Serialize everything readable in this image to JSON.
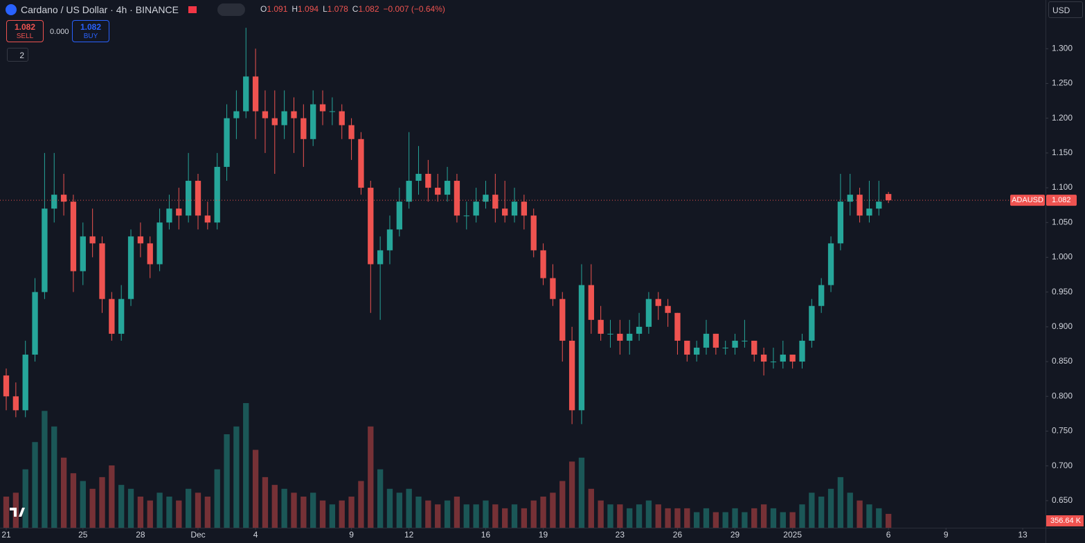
{
  "header": {
    "symbol": "Cardano / US Dollar · 4h · BINANCE",
    "ohlc": [
      {
        "key": "O",
        "value": "1.091"
      },
      {
        "key": "H",
        "value": "1.094"
      },
      {
        "key": "L",
        "value": "1.078"
      },
      {
        "key": "C",
        "value": "1.082"
      }
    ],
    "change": "−0.007 (−0.64%)",
    "sell_price": "1.082",
    "sell": "SELL",
    "spread": "0.000",
    "buy_price": "1.082",
    "buy": "BUY",
    "indicators": "2",
    "currency": "USD"
  },
  "chart_data": {
    "type": "candlestick",
    "up_color": "#26a69a",
    "down_color": "#ef5350",
    "grid": false,
    "xlim": [
      -0.325,
      54.19
    ],
    "xticks": [
      {
        "value": 0,
        "label": "21"
      },
      {
        "value": 4,
        "label": "25"
      },
      {
        "value": 7,
        "label": "28"
      },
      {
        "value": 10,
        "label": "Dec"
      },
      {
        "value": 13,
        "label": "4"
      },
      {
        "value": 18,
        "label": "9"
      },
      {
        "value": 21,
        "label": "12"
      },
      {
        "value": 25,
        "label": "16"
      },
      {
        "value": 28,
        "label": "19"
      },
      {
        "value": 32,
        "label": "23"
      },
      {
        "value": 35,
        "label": "26"
      },
      {
        "value": 38,
        "label": "29"
      },
      {
        "value": 41,
        "label": "2025"
      },
      {
        "value": 46,
        "label": "6"
      },
      {
        "value": 49,
        "label": "9"
      },
      {
        "value": 53,
        "label": "13"
      }
    ],
    "ylim": [
      0.611,
      1.37
    ],
    "yticks": [
      {
        "value": 1.3,
        "label": "1.300"
      },
      {
        "value": 1.25,
        "label": "1.250"
      },
      {
        "value": 1.2,
        "label": "1.200"
      },
      {
        "value": 1.15,
        "label": "1.150"
      },
      {
        "value": 1.1,
        "label": "1.100"
      },
      {
        "value": 1.05,
        "label": "1.050"
      },
      {
        "value": 1.0,
        "label": "1.000"
      },
      {
        "value": 0.95,
        "label": "0.950"
      },
      {
        "value": 0.9,
        "label": "0.900"
      },
      {
        "value": 0.85,
        "label": "0.850"
      },
      {
        "value": 0.8,
        "label": "0.800"
      },
      {
        "value": 0.75,
        "label": "0.750"
      },
      {
        "value": 0.7,
        "label": "0.700"
      },
      {
        "value": 0.65,
        "label": "0.650"
      }
    ],
    "price_line": {
      "name": "ADAUSD",
      "value": 1.082
    },
    "last_volume_label": "356.64 K",
    "x": [
      0,
      0.5,
      1,
      1.5,
      2,
      2.5,
      3,
      3.5,
      4,
      4.5,
      5,
      5.5,
      6,
      6.5,
      7,
      7.5,
      8,
      8.5,
      9,
      9.5,
      10,
      10.5,
      11,
      11.5,
      12,
      12.5,
      13,
      13.5,
      14,
      14.5,
      15,
      15.5,
      16,
      16.5,
      17,
      17.5,
      18,
      18.5,
      19,
      19.5,
      20,
      20.5,
      21,
      21.5,
      22,
      22.5,
      23,
      23.5,
      24,
      24.5,
      25,
      25.5,
      26,
      26.5,
      27,
      27.5,
      28,
      28.5,
      29,
      29.5,
      30,
      30.5,
      31,
      31.5,
      32,
      32.5,
      33,
      33.5,
      34,
      34.5,
      35,
      35.5,
      36,
      36.5,
      37,
      37.5,
      38,
      38.5,
      39,
      39.5,
      40,
      40.5,
      41,
      41.5,
      42,
      42.5,
      43,
      43.5,
      44,
      44.5,
      45,
      45.5,
      46
    ],
    "open": [
      0.83,
      0.8,
      0.78,
      0.86,
      0.95,
      1.07,
      1.09,
      1.08,
      0.98,
      1.03,
      1.02,
      0.94,
      0.89,
      0.94,
      1.03,
      1.02,
      0.99,
      1.05,
      1.07,
      1.06,
      1.11,
      1.06,
      1.05,
      1.13,
      1.2,
      1.21,
      1.26,
      1.21,
      1.2,
      1.19,
      1.21,
      1.2,
      1.17,
      1.22,
      1.21,
      1.21,
      1.19,
      1.17,
      1.1,
      0.99,
      1.01,
      1.04,
      1.08,
      1.11,
      1.12,
      1.1,
      1.09,
      1.11,
      1.06,
      1.06,
      1.08,
      1.09,
      1.07,
      1.06,
      1.08,
      1.06,
      1.01,
      0.97,
      0.94,
      0.88,
      0.78,
      0.96,
      0.91,
      0.89,
      0.89,
      0.88,
      0.89,
      0.9,
      0.94,
      0.93,
      0.92,
      0.88,
      0.86,
      0.87,
      0.89,
      0.87,
      0.87,
      0.88,
      0.88,
      0.86,
      0.85,
      0.85,
      0.86,
      0.85,
      0.88,
      0.93,
      0.96,
      1.02,
      1.08,
      1.09,
      1.06,
      1.07,
      1.091
    ],
    "high": [
      0.84,
      0.82,
      0.88,
      0.97,
      1.15,
      1.15,
      1.12,
      1.09,
      1.05,
      1.07,
      1.03,
      0.95,
      0.96,
      1.04,
      1.05,
      1.03,
      1.07,
      1.09,
      1.1,
      1.15,
      1.12,
      1.08,
      1.15,
      1.22,
      1.24,
      1.33,
      1.3,
      1.24,
      1.24,
      1.24,
      1.23,
      1.22,
      1.24,
      1.24,
      1.23,
      1.22,
      1.2,
      1.18,
      1.11,
      1.03,
      1.06,
      1.1,
      1.18,
      1.16,
      1.14,
      1.12,
      1.13,
      1.12,
      1.08,
      1.1,
      1.11,
      1.12,
      1.11,
      1.1,
      1.09,
      1.07,
      1.02,
      0.99,
      0.95,
      0.9,
      0.99,
      0.99,
      0.93,
      0.91,
      0.91,
      0.91,
      0.92,
      0.95,
      0.95,
      0.94,
      0.92,
      0.88,
      0.88,
      0.91,
      0.89,
      0.88,
      0.89,
      0.91,
      0.88,
      0.87,
      0.87,
      0.88,
      0.86,
      0.89,
      0.94,
      0.97,
      1.03,
      1.12,
      1.12,
      1.1,
      1.11,
      1.11,
      1.094
    ],
    "low": [
      0.78,
      0.77,
      0.77,
      0.85,
      0.94,
      1.05,
      1.06,
      0.95,
      0.96,
      1.0,
      0.92,
      0.88,
      0.88,
      0.93,
      1.0,
      0.97,
      0.98,
      1.04,
      1.04,
      1.05,
      1.04,
      1.04,
      1.04,
      1.11,
      1.17,
      1.2,
      1.17,
      1.15,
      1.12,
      1.17,
      1.15,
      1.13,
      1.16,
      1.19,
      1.19,
      1.17,
      1.14,
      1.09,
      0.92,
      0.91,
      0.99,
      1.03,
      1.07,
      1.09,
      1.08,
      1.08,
      1.08,
      1.05,
      1.04,
      1.05,
      1.07,
      1.05,
      1.05,
      1.05,
      1.04,
      1.0,
      0.96,
      0.93,
      0.85,
      0.76,
      0.76,
      0.89,
      0.88,
      0.87,
      0.86,
      0.86,
      0.88,
      0.89,
      0.91,
      0.9,
      0.86,
      0.85,
      0.85,
      0.86,
      0.86,
      0.86,
      0.86,
      0.87,
      0.85,
      0.83,
      0.84,
      0.84,
      0.84,
      0.84,
      0.87,
      0.92,
      0.95,
      1.01,
      1.06,
      1.05,
      1.05,
      1.06,
      1.078
    ],
    "close": [
      0.8,
      0.78,
      0.86,
      0.95,
      1.07,
      1.09,
      1.08,
      0.98,
      1.03,
      1.02,
      0.94,
      0.89,
      0.94,
      1.03,
      1.02,
      0.99,
      1.05,
      1.07,
      1.06,
      1.11,
      1.06,
      1.05,
      1.13,
      1.2,
      1.21,
      1.26,
      1.21,
      1.2,
      1.19,
      1.21,
      1.2,
      1.17,
      1.22,
      1.21,
      1.21,
      1.19,
      1.17,
      1.1,
      0.99,
      1.01,
      1.04,
      1.08,
      1.11,
      1.12,
      1.1,
      1.09,
      1.11,
      1.06,
      1.06,
      1.08,
      1.09,
      1.07,
      1.06,
      1.08,
      1.06,
      1.01,
      0.97,
      0.94,
      0.88,
      0.78,
      0.96,
      0.91,
      0.89,
      0.89,
      0.88,
      0.89,
      0.9,
      0.94,
      0.93,
      0.92,
      0.88,
      0.86,
      0.87,
      0.89,
      0.87,
      0.87,
      0.88,
      0.88,
      0.86,
      0.85,
      0.85,
      0.86,
      0.85,
      0.88,
      0.93,
      0.96,
      1.02,
      1.08,
      1.09,
      1.06,
      1.07,
      1.08,
      1.082
    ],
    "volume": [
      800,
      900,
      1500,
      2200,
      3000,
      2600,
      1800,
      1400,
      1200,
      1000,
      1300,
      1600,
      1100,
      1000,
      800,
      700,
      900,
      800,
      700,
      1000,
      900,
      800,
      1500,
      2400,
      2600,
      3200,
      2000,
      1300,
      1100,
      1000,
      900,
      800,
      900,
      700,
      600,
      700,
      800,
      1200,
      2600,
      1500,
      1000,
      900,
      1000,
      800,
      700,
      600,
      700,
      800,
      600,
      600,
      700,
      600,
      500,
      600,
      500,
      700,
      800,
      900,
      1200,
      1700,
      1800,
      1000,
      700,
      600,
      600,
      500,
      600,
      700,
      600,
      500,
      500,
      500,
      400,
      500,
      400,
      400,
      500,
      400,
      500,
      600,
      500,
      400,
      400,
      600,
      900,
      800,
      1000,
      1300,
      900,
      700,
      600,
      500,
      356.64
    ]
  }
}
